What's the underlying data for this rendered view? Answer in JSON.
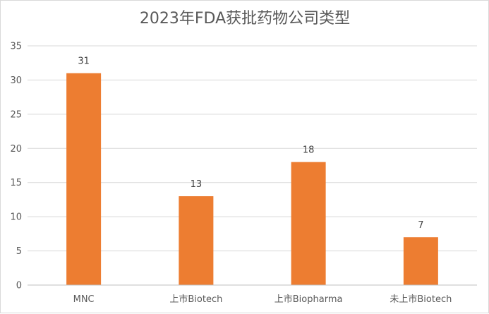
{
  "chart_data": {
    "type": "bar",
    "title": "2023年FDA获批药物公司类型",
    "xlabel": "",
    "ylabel": "",
    "categories": [
      "MNC",
      "上市Biotech",
      "上市Biopharma",
      "未上市Biotech"
    ],
    "values": [
      31,
      13,
      18,
      7
    ],
    "data_labels": [
      "31",
      "13",
      "18",
      "7"
    ],
    "ylim": [
      0,
      35
    ],
    "yticks": [
      0,
      5,
      10,
      15,
      20,
      25,
      30,
      35
    ],
    "grid": true,
    "legend": "none",
    "bar_color": "#ED7D31"
  }
}
